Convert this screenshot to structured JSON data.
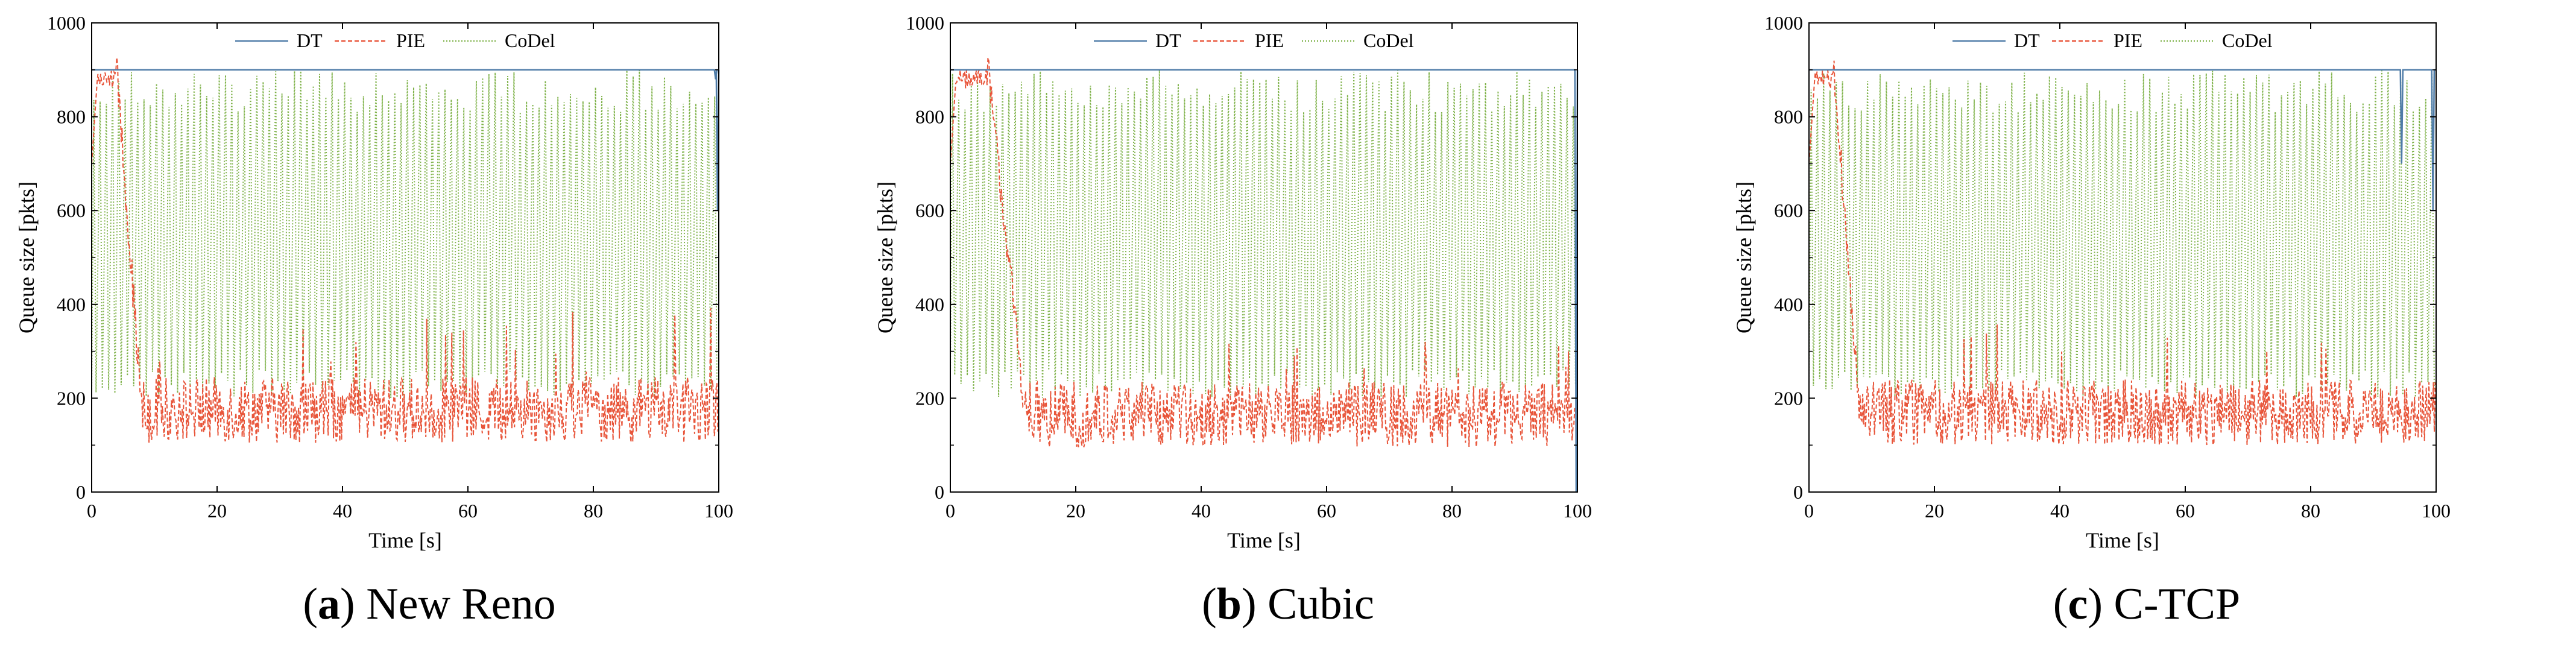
{
  "colors": {
    "DT": "#4f7ca8",
    "PIE": "#e8553a",
    "CoDel": "#7fb24a"
  },
  "chart_data": [
    {
      "type": "line",
      "panel_letter": "a",
      "caption": "New Reno",
      "xlabel": "Time [s]",
      "ylabel": "Queue size [pkts]",
      "xlim": [
        0,
        100
      ],
      "ylim": [
        0,
        1000
      ],
      "xticks": [
        0,
        20,
        40,
        60,
        80,
        100
      ],
      "yticks": [
        0,
        200,
        400,
        600,
        800,
        1000
      ],
      "legend_position": "top-center",
      "series": [
        {
          "name": "DT",
          "style": "solid",
          "level": 900,
          "dips": [
            [
              99.5,
              880
            ],
            [
              99.8,
              600
            ]
          ]
        },
        {
          "name": "PIE",
          "style": "dashed",
          "startup_peak": 900,
          "settle_time": 8,
          "mean": 175,
          "min": 70,
          "max": 400
        },
        {
          "name": "CoDel",
          "style": "dotted",
          "high": 900,
          "low_mean": 220,
          "cycles": 100
        }
      ]
    },
    {
      "type": "line",
      "panel_letter": "b",
      "caption": "Cubic",
      "xlabel": "Time [s]",
      "ylabel": "Queue size [pkts]",
      "xlim": [
        0,
        100
      ],
      "ylim": [
        0,
        1000
      ],
      "xticks": [
        0,
        20,
        40,
        60,
        80,
        100
      ],
      "yticks": [
        0,
        200,
        400,
        600,
        800,
        1000
      ],
      "legend_position": "top-center",
      "series": [
        {
          "name": "DT",
          "style": "solid",
          "level": 900,
          "dips": [
            [
              99.8,
              0
            ]
          ]
        },
        {
          "name": "PIE",
          "style": "dashed",
          "startup_peak": 900,
          "settle_time": 12,
          "mean": 165,
          "min": 70,
          "max": 330
        },
        {
          "name": "CoDel",
          "style": "dotted",
          "high": 900,
          "low_mean": 220,
          "cycles": 100
        }
      ]
    },
    {
      "type": "line",
      "panel_letter": "c",
      "caption": "C-TCP",
      "xlabel": "Time [s]",
      "ylabel": "Queue size [pkts]",
      "xlim": [
        0,
        100
      ],
      "ylim": [
        0,
        1000
      ],
      "xticks": [
        0,
        20,
        40,
        60,
        80,
        100
      ],
      "yticks": [
        0,
        200,
        400,
        600,
        800,
        1000
      ],
      "legend_position": "top-center",
      "series": [
        {
          "name": "DT",
          "style": "solid",
          "level": 900,
          "dips": [
            [
              94.5,
              700
            ],
            [
              99.5,
              600
            ]
          ]
        },
        {
          "name": "PIE",
          "style": "dashed",
          "startup_peak": 900,
          "settle_time": 8,
          "mean": 170,
          "min": 70,
          "max": 360
        },
        {
          "name": "CoDel",
          "style": "dotted",
          "high": 900,
          "low_mean": 220,
          "cycles": 100
        }
      ]
    }
  ]
}
